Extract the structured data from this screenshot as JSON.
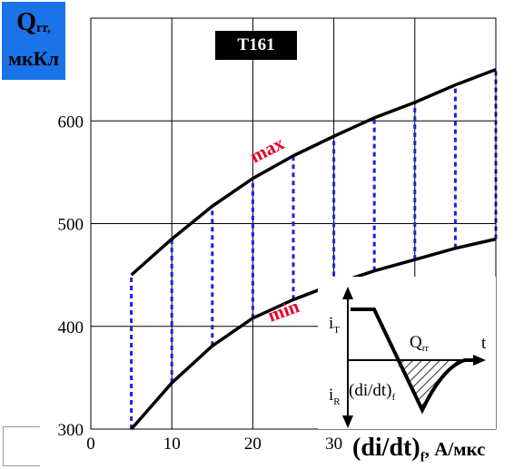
{
  "chart_data": {
    "type": "line",
    "badge": "T161",
    "ylabel": {
      "symbol": "Q",
      "sub": "rr,",
      "unit": "мкКл"
    },
    "xlabel": {
      "main": "(di/dt)",
      "sub": "f",
      "unit": ", А/мкс"
    },
    "xlim": [
      0,
      50
    ],
    "ylim": [
      300,
      700
    ],
    "xticks": [
      0,
      10,
      20,
      30
    ],
    "yticks": [
      300,
      400,
      500,
      600
    ],
    "grid": true,
    "series": [
      {
        "name": "max",
        "x": [
          5,
          10,
          15,
          20,
          25,
          30,
          35,
          40,
          45,
          50
        ],
        "y": [
          450,
          485,
          517,
          544,
          566,
          585,
          603,
          618,
          635,
          650
        ]
      },
      {
        "name": "min",
        "x": [
          5,
          10,
          15,
          20,
          25,
          30,
          35,
          40,
          45,
          50
        ],
        "y": [
          300,
          345,
          381,
          408,
          426,
          441,
          454,
          465,
          476,
          485
        ]
      }
    ],
    "range_lines_x": [
      5,
      10,
      15,
      20,
      25,
      30,
      35,
      40,
      45,
      50
    ],
    "colors": {
      "curve": "#000000",
      "range_line": "#1f1fe0",
      "label": "#e8002a",
      "badge_bg": "#000000",
      "ylabel_bg": "#1a73e8"
    },
    "inset": {
      "labels": {
        "iT": "i",
        "iT_sub": "T",
        "iR": "i",
        "iR_sub": "R",
        "t": "t",
        "Q": "Q",
        "Q_sub": "rr",
        "didt": "(di/dt)",
        "didt_sub": "f"
      }
    }
  }
}
